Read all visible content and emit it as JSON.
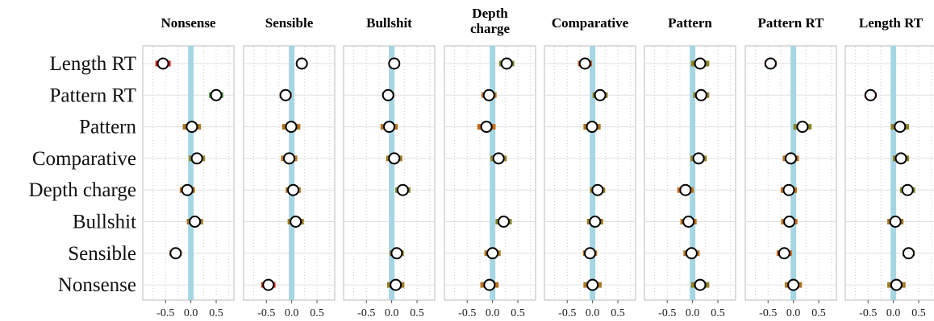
{
  "chart_data": {
    "type": "forest",
    "panels": [
      "Nonsense",
      "Sensible",
      "Bullshit",
      "Depth charge",
      "Comparative",
      "Pattern",
      "Pattern RT",
      "Length RT"
    ],
    "rows": [
      "Length RT",
      "Pattern RT",
      "Pattern",
      "Comparative",
      "Depth charge",
      "Bullshit",
      "Sensible",
      "Nonsense"
    ],
    "xlim": [
      -0.95,
      0.85
    ],
    "xticks": [
      -0.5,
      0.0,
      0.5
    ],
    "xtick_labels": [
      "-0.5",
      "0.0",
      "0.5"
    ],
    "reference_line": 0,
    "grid": true,
    "estimates": [
      [
        [
          -0.55,
          0.15
        ],
        [
          0.2,
          0.1
        ],
        [
          0.05,
          0.11
        ],
        [
          0.28,
          0.15
        ],
        [
          -0.15,
          0.14
        ],
        [
          0.15,
          0.18
        ],
        [
          -0.45,
          0.12
        ],
        null
      ],
      [
        [
          0.5,
          0.14
        ],
        [
          -0.12,
          0.12
        ],
        [
          -0.07,
          0.12
        ],
        [
          -0.07,
          0.15
        ],
        [
          0.15,
          0.15
        ],
        [
          0.17,
          0.16
        ],
        null,
        [
          -0.45,
          0.12
        ]
      ],
      [
        [
          0.02,
          0.18
        ],
        [
          -0.01,
          0.18
        ],
        [
          -0.05,
          0.17
        ],
        [
          -0.12,
          0.18
        ],
        [
          -0.01,
          0.17
        ],
        null,
        [
          0.18,
          0.18
        ],
        [
          0.13,
          0.18
        ]
      ],
      [
        [
          0.12,
          0.16
        ],
        [
          -0.05,
          0.16
        ],
        [
          0.05,
          0.16
        ],
        [
          0.12,
          0.16
        ],
        null,
        [
          0.12,
          0.16
        ],
        [
          -0.05,
          0.16
        ],
        [
          0.15,
          0.16
        ]
      ],
      [
        [
          -0.07,
          0.15
        ],
        [
          0.03,
          0.15
        ],
        [
          0.22,
          0.15
        ],
        null,
        [
          0.1,
          0.15
        ],
        [
          -0.14,
          0.16
        ],
        [
          -0.09,
          0.16
        ],
        [
          0.28,
          0.15
        ]
      ],
      [
        [
          0.08,
          0.16
        ],
        [
          0.08,
          0.16
        ],
        null,
        [
          0.22,
          0.16
        ],
        [
          0.05,
          0.16
        ],
        [
          -0.08,
          0.16
        ],
        [
          -0.08,
          0.16
        ],
        [
          0.04,
          0.16
        ]
      ],
      [
        [
          -0.3,
          0.12
        ],
        null,
        [
          0.1,
          0.14
        ],
        [
          0.0,
          0.16
        ],
        [
          -0.05,
          0.14
        ],
        [
          -0.02,
          0.16
        ],
        [
          -0.18,
          0.15
        ],
        [
          0.3,
          0.12
        ]
      ],
      [
        null,
        [
          -0.46,
          0.14
        ],
        [
          0.08,
          0.17
        ],
        [
          -0.06,
          0.18
        ],
        [
          0.0,
          0.18
        ],
        [
          0.15,
          0.18
        ],
        [
          0.0,
          0.17
        ],
        [
          0.06,
          0.18
        ]
      ]
    ]
  }
}
